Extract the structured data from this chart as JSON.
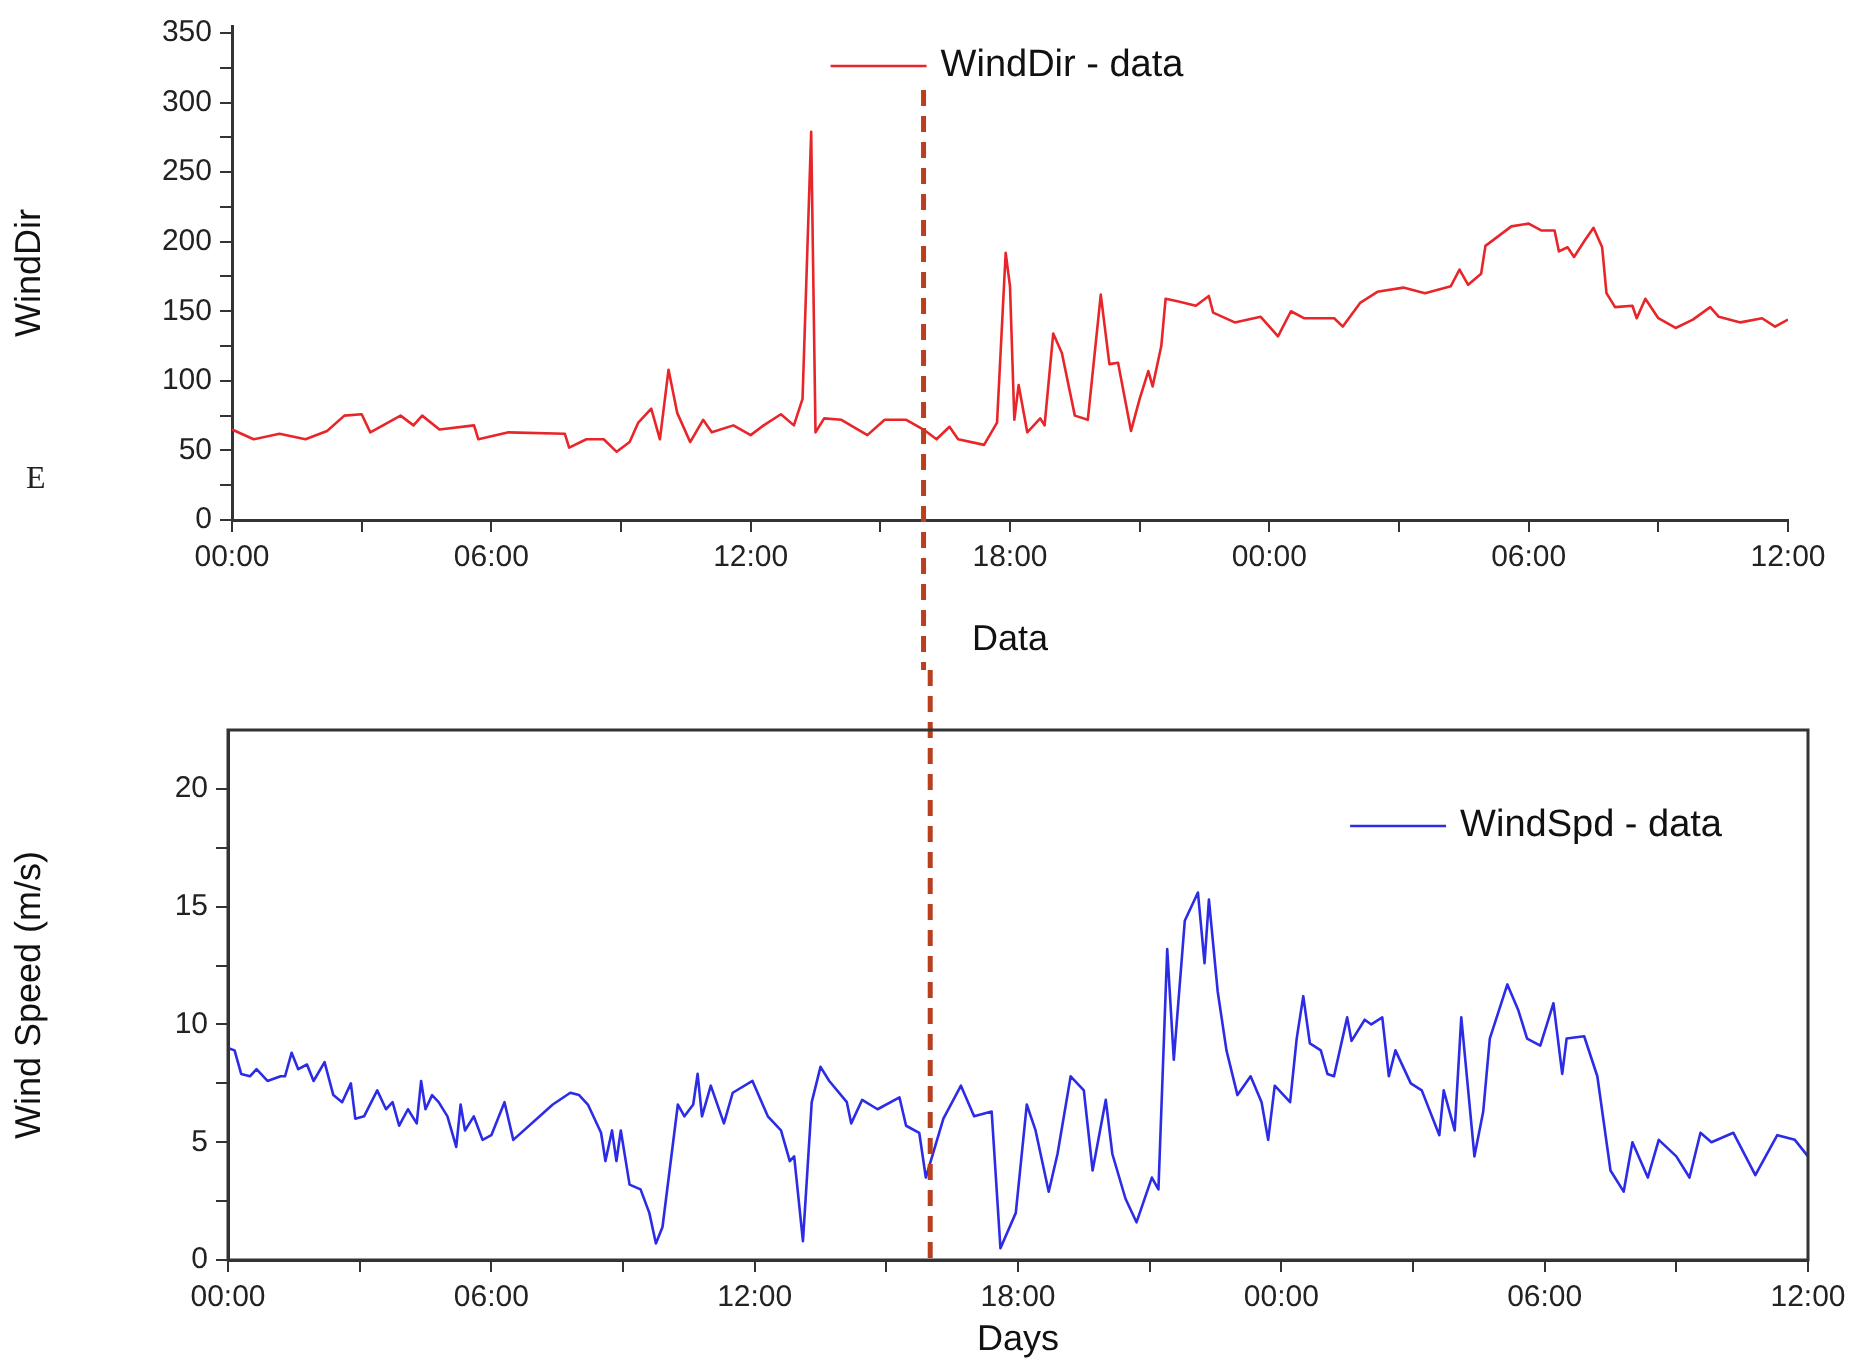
{
  "chart_data": [
    {
      "type": "line",
      "xlabel": "Data",
      "ylabel": "WindDir",
      "annotations": [
        "E"
      ],
      "legend": "top",
      "grid": false,
      "line_style": "solid",
      "marker": "none",
      "xlim": [
        "--01-01T00:00",
        "--01-02T12:00"
      ],
      "ylim": [
        0,
        355
      ],
      "xticks": [
        {
          "value": "--01-01T00:00",
          "label": "00:00"
        },
        {
          "value": "--01-01T03:00",
          "label": null
        },
        {
          "value": "--01-01T06:00",
          "label": "06:00"
        },
        {
          "value": "--01-01T09:00",
          "label": null
        },
        {
          "value": "--01-01T12:00",
          "label": "12:00"
        },
        {
          "value": "--01-01T15:00",
          "label": null
        },
        {
          "value": "--01-01T18:00",
          "label": "18:00"
        },
        {
          "value": "--01-01T21:00",
          "label": null
        },
        {
          "value": "--01-02T00:00",
          "label": "00:00"
        },
        {
          "value": "--01-02T03:00",
          "label": null
        },
        {
          "value": "--01-02T06:00",
          "label": "06:00"
        },
        {
          "value": "--01-02T09:00",
          "label": null
        },
        {
          "value": "--01-02T12:00",
          "label": "12:00"
        }
      ],
      "yticks": [
        0,
        {
          "value": 25,
          "label": null
        },
        50,
        {
          "value": 75,
          "label": null
        },
        100,
        {
          "value": 125,
          "label": null
        },
        150,
        {
          "value": 175,
          "label": null
        },
        200,
        {
          "value": 225,
          "label": null
        },
        250,
        {
          "value": 275,
          "label": null
        },
        300,
        {
          "value": 325,
          "label": null
        },
        350
      ],
      "ref_lines": [
        {
          "axis": "x",
          "value": "--01-01T16:00",
          "color": "#b8401e",
          "line_style": "dashed"
        }
      ],
      "series": [
        {
          "name": "WindDir - data",
          "color": "#e8262a",
          "x": [
            "--01-01T00:00",
            "--01-01T00:30",
            "--01-01T01:06",
            "--01-01T01:42",
            "--01-01T02:12",
            "--01-01T02:36",
            "--01-01T03:00",
            "--01-01T03:12",
            "--01-01T03:54",
            "--01-01T04:12",
            "--01-01T04:24",
            "--01-01T04:48",
            "--01-01T05:36",
            "--01-01T05:42",
            "--01-01T06:24",
            "--01-01T07:42",
            "--01-01T07:48",
            "--01-01T08:12",
            "--01-01T08:36",
            "--01-01T08:54",
            "--01-01T09:12",
            "--01-01T09:24",
            "--01-01T09:42",
            "--01-01T09:54",
            "--01-01T10:06",
            "--01-01T10:18",
            "--01-01T10:36",
            "--01-01T10:54",
            "--01-01T11:06",
            "--01-01T11:36",
            "--01-01T12:00",
            "--01-01T12:18",
            "--01-01T12:42",
            "--01-01T13:00",
            "--01-01T13:12",
            "--01-01T13:24",
            "--01-01T13:30",
            "--01-01T13:42",
            "--01-01T14:06",
            "--01-01T14:42",
            "--01-01T15:06",
            "--01-01T15:36",
            "--01-01T16:00",
            "--01-01T16:18",
            "--01-01T16:36",
            "--01-01T16:48",
            "--01-01T17:24",
            "--01-01T17:42",
            "--01-01T17:54",
            "--01-01T18:00",
            "--01-01T18:06",
            "--01-01T18:12",
            "--01-01T18:24",
            "--01-01T18:42",
            "--01-01T18:48",
            "--01-01T19:00",
            "--01-01T19:12",
            "--01-01T19:30",
            "--01-01T19:48",
            "--01-01T20:06",
            "--01-01T20:18",
            "--01-01T20:30",
            "--01-01T20:48",
            "--01-01T21:00",
            "--01-01T21:12",
            "--01-01T21:18",
            "--01-01T21:30",
            "--01-01T21:36",
            "--01-01T21:54",
            "--01-01T22:18",
            "--01-01T22:36",
            "--01-01T22:42",
            "--01-01T23:12",
            "--01-01T23:48",
            "--01-02T00:12",
            "--01-02T00:30",
            "--01-02T00:48",
            "--01-02T01:30",
            "--01-02T01:42",
            "--01-02T02:06",
            "--01-02T02:30",
            "--01-02T03:06",
            "--01-02T03:36",
            "--01-02T04:12",
            "--01-02T04:24",
            "--01-02T04:36",
            "--01-02T04:54",
            "--01-02T05:00",
            "--01-02T05:36",
            "--01-02T06:00",
            "--01-02T06:18",
            "--01-02T06:36",
            "--01-02T06:42",
            "--01-02T06:54",
            "--01-02T07:03",
            "--01-02T07:18",
            "--01-02T07:30",
            "--01-02T07:42",
            "--01-02T07:48",
            "--01-02T08:00",
            "--01-02T08:24",
            "--01-02T08:30",
            "--01-02T08:42",
            "--01-02T09:00",
            "--01-02T09:24",
            "--01-02T09:48",
            "--01-02T10:12",
            "--01-02T10:24",
            "--01-02T10:54",
            "--01-02T11:24",
            "--01-02T11:42",
            "--01-02T12:00"
          ],
          "values": [
            65,
            58,
            62,
            58,
            64,
            75,
            76,
            63,
            75,
            68,
            75,
            65,
            68,
            58,
            63,
            62,
            52,
            58,
            58,
            49,
            56,
            70,
            80,
            58,
            108,
            77,
            56,
            72,
            63,
            68,
            61,
            68,
            76,
            68,
            87,
            279,
            63,
            73,
            72,
            61,
            72,
            72,
            65,
            58,
            67,
            58,
            54,
            70,
            192,
            168,
            72,
            97,
            63,
            73,
            68,
            134,
            120,
            75,
            72,
            162,
            112,
            113,
            64,
            87,
            107,
            96,
            125,
            159,
            157,
            154,
            161,
            149,
            142,
            146,
            132,
            150,
            145,
            145,
            139,
            156,
            164,
            167,
            163,
            168,
            180,
            169,
            177,
            197,
            211,
            213,
            208,
            208,
            193,
            196,
            189,
            201,
            210,
            196,
            163,
            153,
            154,
            145,
            159,
            145,
            138,
            144,
            153,
            146,
            142,
            145,
            139,
            144
          ]
        }
      ]
    },
    {
      "type": "line",
      "xlabel": "Days",
      "ylabel": "Wind Speed (m/s)",
      "legend": "top right",
      "grid": false,
      "line_style": "solid",
      "marker": "none",
      "xlim": [
        "--01-01T00:00",
        "--01-02T12:00"
      ],
      "ylim": [
        0,
        22.5
      ],
      "xticks": [
        {
          "value": "--01-01T00:00",
          "label": "00:00"
        },
        {
          "value": "--01-01T03:00",
          "label": null
        },
        {
          "value": "--01-01T06:00",
          "label": "06:00"
        },
        {
          "value": "--01-01T09:00",
          "label": null
        },
        {
          "value": "--01-01T12:00",
          "label": "12:00"
        },
        {
          "value": "--01-01T15:00",
          "label": null
        },
        {
          "value": "--01-01T18:00",
          "label": "18:00"
        },
        {
          "value": "--01-01T21:00",
          "label": null
        },
        {
          "value": "--01-02T00:00",
          "label": "00:00"
        },
        {
          "value": "--01-02T03:00",
          "label": null
        },
        {
          "value": "--01-02T06:00",
          "label": "06:00"
        },
        {
          "value": "--01-02T09:00",
          "label": null
        },
        {
          "value": "--01-02T12:00",
          "label": "12:00"
        }
      ],
      "yticks": [
        0,
        {
          "value": 2.5,
          "label": null
        },
        5,
        {
          "value": 7.5,
          "label": null
        },
        10,
        {
          "value": 12.5,
          "label": null
        },
        15,
        {
          "value": 17.5,
          "label": null
        },
        20
      ],
      "ref_lines": [
        {
          "axis": "x",
          "value": "--01-01T16:00",
          "color": "#b8401e",
          "line_style": "dashed"
        }
      ],
      "series": [
        {
          "name": "WindSpd - data",
          "color": "#2c2ce6",
          "x": [
            "--01-01T00:00",
            "--01-01T00:09",
            "--01-01T00:18",
            "--01-01T00:30",
            "--01-01T00:39",
            "--01-01T00:54",
            "--01-01T01:12",
            "--01-01T01:18",
            "--01-01T01:27",
            "--01-01T01:36",
            "--01-01T01:48",
            "--01-01T01:57",
            "--01-01T02:12",
            "--01-01T02:24",
            "--01-01T02:36",
            "--01-01T02:48",
            "--01-01T02:54",
            "--01-01T03:06",
            "--01-01T03:24",
            "--01-01T03:36",
            "--01-01T03:45",
            "--01-01T03:54",
            "--01-01T04:06",
            "--01-01T04:18",
            "--01-01T04:24",
            "--01-01T04:30",
            "--01-01T04:39",
            "--01-01T04:48",
            "--01-01T05:00",
            "--01-01T05:12",
            "--01-01T05:18",
            "--01-01T05:24",
            "--01-01T05:36",
            "--01-01T05:48",
            "--01-01T06:00",
            "--01-01T06:18",
            "--01-01T06:30",
            "--01-01T07:24",
            "--01-01T07:48",
            "--01-01T08:00",
            "--01-01T08:12",
            "--01-01T08:30",
            "--01-01T08:36",
            "--01-01T08:45",
            "--01-01T08:51",
            "--01-01T08:57",
            "--01-01T09:09",
            "--01-01T09:24",
            "--01-01T09:36",
            "--01-01T09:45",
            "--01-01T09:54",
            "--01-01T10:15",
            "--01-01T10:24",
            "--01-01T10:36",
            "--01-01T10:42",
            "--01-01T10:48",
            "--01-01T11:00",
            "--01-01T11:18",
            "--01-01T11:30",
            "--01-01T11:57",
            "--01-01T12:18",
            "--01-01T12:36",
            "--01-01T12:48",
            "--01-01T12:54",
            "--01-01T13:06",
            "--01-01T13:18",
            "--01-01T13:30",
            "--01-01T13:42",
            "--01-01T14:06",
            "--01-01T14:12",
            "--01-01T14:27",
            "--01-01T14:48",
            "--01-01T15:18",
            "--01-01T15:27",
            "--01-01T15:45",
            "--01-01T15:54",
            "--01-01T16:18",
            "--01-01T16:42",
            "--01-01T17:00",
            "--01-01T17:24",
            "--01-01T17:36",
            "--01-01T17:57",
            "--01-01T18:12",
            "--01-01T18:24",
            "--01-01T18:42",
            "--01-01T18:54",
            "--01-01T19:12",
            "--01-01T19:30",
            "--01-01T19:42",
            "--01-01T20:00",
            "--01-01T20:09",
            "--01-01T20:27",
            "--01-01T20:42",
            "--01-01T21:03",
            "--01-01T21:12",
            "--01-01T21:24",
            "--01-01T21:33",
            "--01-01T21:48",
            "--01-01T22:06",
            "--01-01T22:15",
            "--01-01T22:21",
            "--01-01T22:33",
            "--01-01T22:45",
            "--01-01T23:00",
            "--01-01T23:18",
            "--01-01T23:33",
            "--01-01T23:42",
            "--01-01T23:51",
            "--01-02T00:12",
            "--01-02T00:21",
            "--01-02T00:30",
            "--01-02T00:39",
            "--01-02T00:54",
            "--01-02T01:03",
            "--01-02T01:12",
            "--01-02T01:30",
            "--01-02T01:36",
            "--01-02T01:54",
            "--01-02T02:03",
            "--01-02T02:18",
            "--01-02T02:27",
            "--01-02T02:36",
            "--01-02T02:57",
            "--01-02T03:12",
            "--01-02T03:36",
            "--01-02T03:42",
            "--01-02T03:57",
            "--01-02T04:06",
            "--01-02T04:24",
            "--01-02T04:36",
            "--01-02T04:45",
            "--01-02T05:09",
            "--01-02T05:24",
            "--01-02T05:36",
            "--01-02T05:54",
            "--01-02T06:12",
            "--01-02T06:24",
            "--01-02T06:30",
            "--01-02T06:54",
            "--01-02T07:12",
            "--01-02T07:30",
            "--01-02T07:48",
            "--01-02T08:00",
            "--01-02T08:21",
            "--01-02T08:36",
            "--01-02T09:00",
            "--01-02T09:18",
            "--01-02T09:33",
            "--01-02T09:48",
            "--01-02T10:18",
            "--01-02T10:48",
            "--01-02T11:18",
            "--01-02T11:42",
            "--01-02T12:00"
          ],
          "values": [
            9.0,
            8.9,
            7.9,
            7.8,
            8.1,
            7.6,
            7.8,
            7.8,
            8.8,
            8.1,
            8.3,
            7.6,
            8.4,
            7.0,
            6.7,
            7.5,
            6.0,
            6.1,
            7.2,
            6.4,
            6.7,
            5.7,
            6.4,
            5.8,
            7.6,
            6.4,
            7.0,
            6.7,
            6.1,
            4.8,
            6.6,
            5.5,
            6.1,
            5.1,
            5.3,
            6.7,
            5.1,
            6.6,
            7.1,
            7.0,
            6.6,
            5.4,
            4.2,
            5.5,
            4.2,
            5.5,
            3.2,
            3.0,
            2.0,
            0.7,
            1.4,
            6.6,
            6.1,
            6.6,
            7.9,
            6.1,
            7.4,
            5.8,
            7.1,
            7.6,
            6.1,
            5.5,
            4.2,
            4.4,
            0.8,
            6.7,
            8.2,
            7.6,
            6.7,
            5.8,
            6.8,
            6.4,
            6.9,
            5.7,
            5.4,
            3.5,
            6.0,
            7.4,
            6.1,
            6.3,
            0.5,
            2.0,
            6.6,
            5.5,
            2.9,
            4.5,
            7.8,
            7.2,
            3.8,
            6.8,
            4.5,
            2.6,
            1.6,
            3.5,
            3.0,
            13.2,
            8.5,
            14.4,
            15.6,
            12.6,
            15.3,
            11.4,
            8.9,
            7.0,
            7.8,
            6.7,
            5.1,
            7.4,
            6.7,
            9.4,
            11.2,
            9.2,
            8.9,
            7.9,
            7.8,
            10.3,
            9.3,
            10.2,
            10.0,
            10.3,
            7.8,
            8.9,
            7.5,
            7.2,
            5.3,
            7.2,
            5.5,
            10.3,
            4.4,
            6.3,
            9.4,
            11.7,
            10.6,
            9.4,
            9.1,
            10.9,
            7.9,
            9.4,
            9.5,
            7.8,
            3.8,
            2.9,
            5.0,
            3.5,
            5.1,
            4.4,
            3.5,
            5.4,
            5.0,
            5.4,
            3.6,
            5.3,
            5.1,
            4.4
          ]
        }
      ]
    }
  ]
}
